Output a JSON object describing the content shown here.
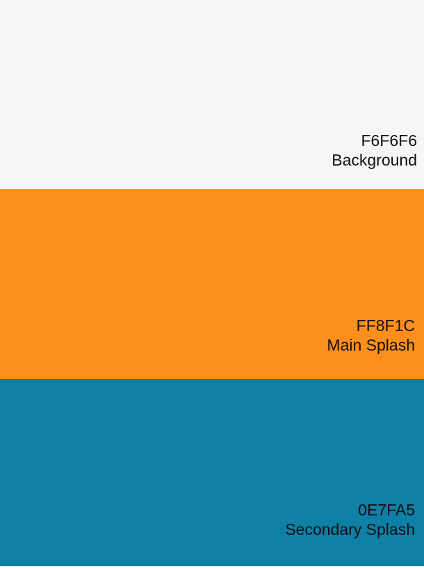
{
  "swatches": [
    {
      "hex": "F6F6F6",
      "name": "Background",
      "color": "#F6F6F6"
    },
    {
      "hex": "FF8F1C",
      "name": "Main Splash",
      "color": "#FF8F1C"
    },
    {
      "hex": "0E7FA5",
      "name": "Secondary Splash",
      "color": "#0E7FA5"
    }
  ]
}
